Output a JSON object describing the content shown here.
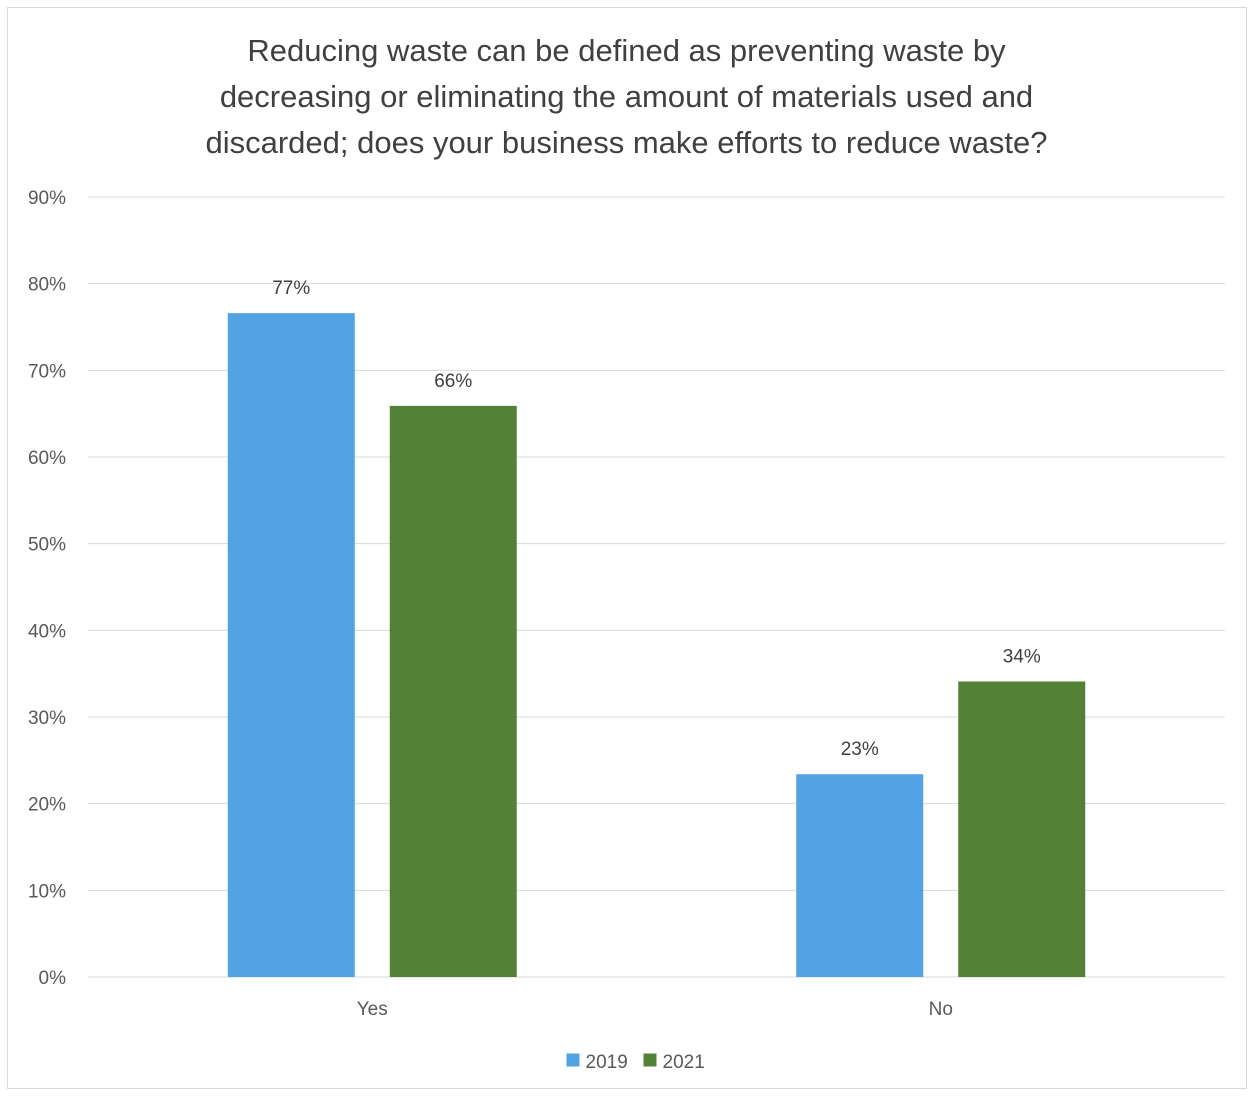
{
  "chart_data": {
    "type": "bar",
    "title_lines": [
      "Reducing waste can be defined as preventing waste by",
      "decreasing or eliminating the amount of materials used and",
      "discarded; does your business make efforts to reduce waste?"
    ],
    "categories": [
      "Yes",
      "No"
    ],
    "series": [
      {
        "name": "2019",
        "values": [
          76.6,
          23.4
        ],
        "labels": [
          "77%",
          "23%"
        ],
        "color": "#52a3e3"
      },
      {
        "name": "2021",
        "values": [
          65.9,
          34.1
        ],
        "labels": [
          "66%",
          "34%"
        ],
        "color": "#538135"
      }
    ],
    "ylim": [
      0,
      90
    ],
    "yticks": [
      0,
      10,
      20,
      30,
      40,
      50,
      60,
      70,
      80,
      90
    ],
    "ytick_labels": [
      "0%",
      "10%",
      "20%",
      "30%",
      "40%",
      "50%",
      "60%",
      "70%",
      "80%",
      "90%"
    ],
    "grid": true,
    "legend_position": "bottom",
    "gridline_color": "#d9d9d9"
  }
}
